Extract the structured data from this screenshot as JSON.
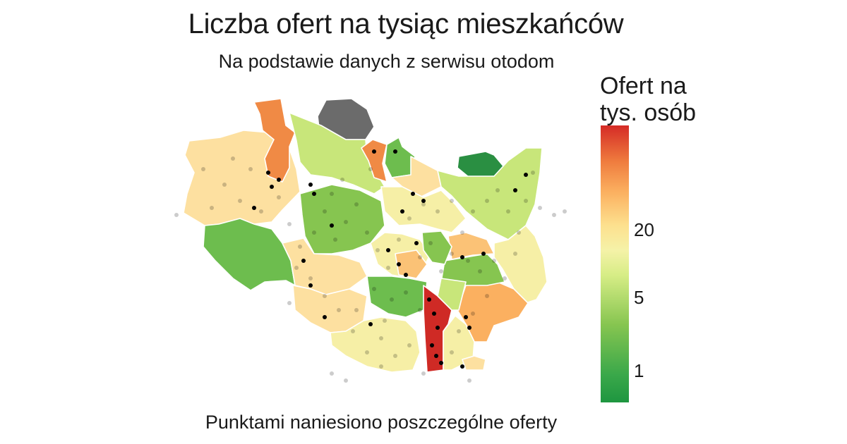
{
  "title": "Liczba ofert na tysiąc mieszkańców",
  "subtitle": "Na podstawie danych z serwisu otodom",
  "caption": "Punktami naniesiono poszczególne oferty",
  "legend": {
    "title_line1": "Ofert na",
    "title_line2": "tys. osób",
    "ticks": [
      "20",
      "5",
      "1"
    ],
    "scale": "logarithmic",
    "colors": [
      "#1e9640",
      "#86c550",
      "#f5f2a8",
      "#fbb060",
      "#d52b26"
    ]
  },
  "map": {
    "fill_colors": {
      "dark_green": "#2a8f42",
      "green": "#6dbd4e",
      "light_green": "#c8e67a",
      "yellow": "#f6efa6",
      "beige": "#fde0a0",
      "light_orange": "#fbc276",
      "orange": "#f08a45",
      "red": "#cf2a25",
      "no_data": "#6b6b6b"
    },
    "boundary_color": "#ffffff",
    "point_color": "#000000"
  }
}
